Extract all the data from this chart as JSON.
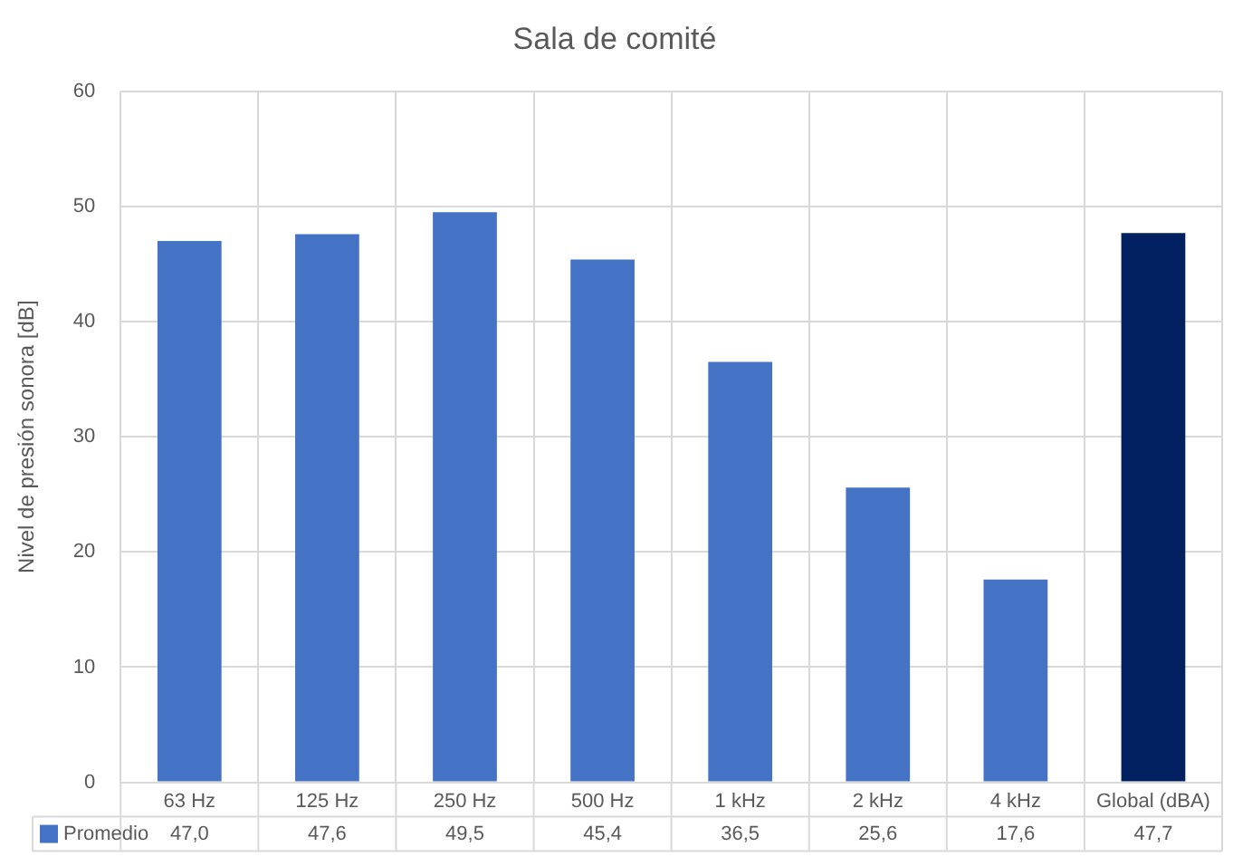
{
  "chart_data": {
    "type": "bar",
    "title": "Sala de comité",
    "ylabel": "Nivel de presión sonora [dB]",
    "categories": [
      "63 Hz",
      "125 Hz",
      "250 Hz",
      "500 Hz",
      "1 kHz",
      "2 kHz",
      "4 kHz",
      "Global (dBA)"
    ],
    "series": [
      {
        "name": "Promedio",
        "color": "#4472c4",
        "colors": [
          "#4472c4",
          "#4472c4",
          "#4472c4",
          "#4472c4",
          "#4472c4",
          "#4472c4",
          "#4472c4",
          "#002060"
        ],
        "values": [
          47.0,
          47.6,
          49.5,
          45.4,
          36.5,
          25.6,
          17.6,
          47.7
        ],
        "value_labels": [
          "47,0",
          "47,6",
          "49,5",
          "45,4",
          "36,5",
          "25,6",
          "17,6",
          "47,7"
        ]
      }
    ],
    "ylim": [
      0,
      60
    ],
    "yticks": [
      0,
      10,
      20,
      30,
      40,
      50,
      60
    ],
    "grid": true,
    "legend": "bottom"
  }
}
